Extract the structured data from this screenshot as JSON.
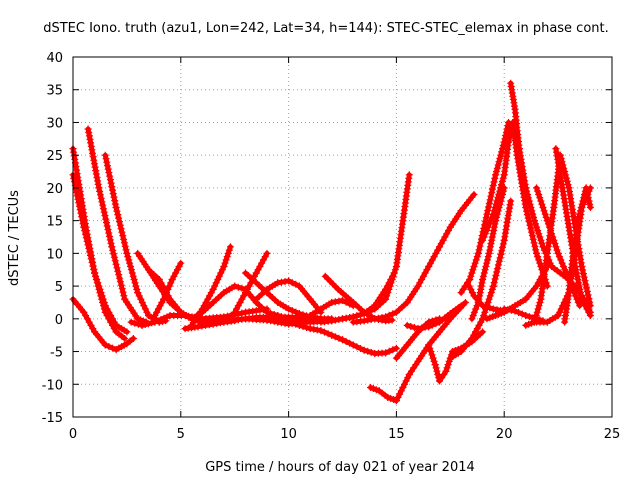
{
  "chart_data": {
    "type": "scatter",
    "title": "dSTEC Iono. truth (azu1, Lon=242, Lat=34, h=144): STEC-STEC_elemax in phase cont.",
    "xlabel": "GPS time / hours of day 021 of year 2014",
    "ylabel": "dSTEC  / TECUs",
    "xlim": [
      0,
      25
    ],
    "ylim": [
      -15,
      40
    ],
    "xticks": [
      0,
      5,
      10,
      15,
      20,
      25
    ],
    "yticks": [
      -15,
      -10,
      -5,
      0,
      5,
      10,
      15,
      20,
      25,
      30,
      35,
      40
    ],
    "grid": true,
    "marker": "+",
    "color": "#ff0000",
    "series": [
      {
        "x": [
          0.0,
          0.3,
          0.6,
          1.0,
          1.5,
          2.0,
          2.4
        ],
        "y": [
          26,
          20,
          14,
          7,
          1,
          -2,
          -3
        ]
      },
      {
        "x": [
          0.0,
          0.5,
          1.0,
          1.5,
          2.0,
          2.5
        ],
        "y": [
          22,
          14,
          7,
          2,
          -1,
          -2
        ]
      },
      {
        "x": [
          0.0,
          0.5,
          1.0,
          1.5,
          2.0,
          2.5,
          2.8
        ],
        "y": [
          3,
          1,
          -2,
          -4,
          -4.7,
          -3.8,
          -3
        ]
      },
      {
        "x": [
          0.7,
          1.2,
          1.8,
          2.4,
          3.0,
          3.4
        ],
        "y": [
          29,
          20,
          11,
          3,
          0,
          -0.5
        ]
      },
      {
        "x": [
          1.5,
          2.0,
          2.5,
          3.0,
          3.5,
          4.0,
          4.3
        ],
        "y": [
          25,
          17,
          10,
          4,
          0.5,
          -0.5,
          -0.3
        ]
      },
      {
        "x": [
          2.7,
          3.2,
          3.8,
          4.5,
          5.2,
          6.0,
          7.0,
          8.0,
          9.0
        ],
        "y": [
          -0.5,
          -1,
          -0.5,
          0.5,
          0.5,
          0,
          0.3,
          1,
          1.5
        ]
      },
      {
        "x": [
          3.0,
          3.5,
          4.0,
          4.5,
          5.0,
          5.5,
          6.0
        ],
        "y": [
          10,
          7.5,
          5,
          2.5,
          1,
          0,
          -0.5
        ]
      },
      {
        "x": [
          3.5,
          4.0,
          4.5,
          5.0,
          5.5,
          6.0,
          6.5,
          7.0,
          7.5
        ],
        "y": [
          7.5,
          6,
          3,
          1,
          0,
          -0.5,
          -0.5,
          -0.5,
          -0.3
        ]
      },
      {
        "x": [
          3.8,
          4.2,
          4.6,
          5.0
        ],
        "y": [
          0.5,
          3,
          6,
          8.5
        ]
      },
      {
        "x": [
          5.5,
          6.0,
          6.5,
          7.0,
          7.5,
          8.0,
          8.5,
          9.0,
          9.5,
          10.0
        ],
        "y": [
          0,
          1,
          2.5,
          4,
          5,
          4.5,
          2.5,
          1,
          0.5,
          0
        ]
      },
      {
        "x": [
          5.5,
          6.0,
          6.5,
          7.0,
          7.3
        ],
        "y": [
          -1,
          1.5,
          4.5,
          8,
          11
        ]
      },
      {
        "x": [
          5.2,
          5.8,
          6.5,
          7.5,
          8.5,
          9.5,
          10.5,
          11.5
        ],
        "y": [
          -1.5,
          -1.2,
          -0.8,
          -0.2,
          0.2,
          0.3,
          0.2,
          0.1
        ]
      },
      {
        "x": [
          6.0,
          7.0,
          8.0,
          9.0,
          10.0,
          11.0,
          12.0
        ],
        "y": [
          -0.5,
          -0.3,
          0,
          -0.2,
          -0.5,
          -0.5,
          -0.3
        ]
      },
      {
        "x": [
          7.5,
          8.0,
          8.5,
          9.0
        ],
        "y": [
          1,
          4,
          7,
          10
        ]
      },
      {
        "x": [
          8.0,
          8.5,
          9.0,
          9.5,
          10.0,
          10.5,
          11.0,
          11.5,
          12.0
        ],
        "y": [
          7,
          5.5,
          4,
          2.5,
          1.5,
          0.8,
          0.3,
          0,
          0
        ]
      },
      {
        "x": [
          8.5,
          9.0,
          9.5,
          10.0,
          10.5,
          11.0,
          11.5
        ],
        "y": [
          3,
          4.5,
          5.5,
          5.8,
          5,
          3,
          1
        ]
      },
      {
        "x": [
          9.0,
          9.5,
          10.0,
          10.5,
          11.0,
          11.5,
          12.0,
          12.5,
          13.0
        ],
        "y": [
          -0.2,
          -0.5,
          -0.8,
          -0.5,
          0.5,
          1.5,
          2.5,
          2.8,
          2
        ]
      },
      {
        "x": [
          10.0,
          10.5,
          11.0,
          11.5,
          12.0,
          12.5,
          13.0,
          13.5,
          14.0,
          14.5,
          15.0
        ],
        "y": [
          -0.5,
          -1,
          -1.5,
          -1.8,
          -2.5,
          -3.2,
          -4,
          -4.8,
          -5.3,
          -5.2,
          -4.5
        ]
      },
      {
        "x": [
          11.7,
          12.3,
          13.0,
          13.5,
          14.0,
          14.5,
          14.8
        ],
        "y": [
          6.5,
          4.5,
          2.5,
          1,
          0,
          -0.3,
          -0.2
        ]
      },
      {
        "x": [
          11.5,
          12.0,
          12.5,
          13.0,
          13.5,
          14.0,
          14.5,
          14.9
        ],
        "y": [
          -0.5,
          -0.3,
          0,
          0.3,
          0.8,
          2,
          4.5,
          7
        ]
      },
      {
        "x": [
          12.5,
          13.0,
          13.5,
          14.0,
          14.5,
          15.0,
          15.3,
          15.6
        ],
        "y": [
          0,
          0.3,
          0.8,
          1.5,
          3,
          8,
          15,
          22
        ]
      },
      {
        "x": [
          13.0,
          13.5,
          14.0,
          14.5,
          15.0,
          15.5,
          16.0,
          16.5,
          17.0,
          17.5,
          18.0,
          18.6
        ],
        "y": [
          -0.5,
          -0.3,
          0,
          0.3,
          1,
          2.5,
          5,
          8,
          11,
          14,
          16.5,
          19
        ]
      },
      {
        "x": [
          13.8,
          14.2,
          14.6,
          15.0,
          15.3,
          15.6,
          16.0,
          16.5,
          17.0,
          17.5,
          18.2
        ],
        "y": [
          -10.5,
          -11,
          -12,
          -12.5,
          -10.5,
          -8.5,
          -6.5,
          -4,
          -2,
          0,
          2.5
        ]
      },
      {
        "x": [
          15.5,
          16.0,
          16.5,
          17.0,
          17.5,
          18.0
        ],
        "y": [
          -1,
          -1.5,
          -1.2,
          -0.5,
          0.8,
          2
        ]
      },
      {
        "x": [
          15.0,
          15.5,
          16.0,
          16.5,
          17.0
        ],
        "y": [
          -6,
          -4,
          -2,
          -0.5,
          0
        ]
      },
      {
        "x": [
          16.5,
          16.8,
          17.0,
          17.3,
          17.6,
          18.0,
          18.5,
          19.0
        ],
        "y": [
          -4,
          -7,
          -9.5,
          -8,
          -5,
          -4.5,
          -3.5,
          -2
        ]
      },
      {
        "x": [
          17.5,
          18.0,
          18.5,
          19.0,
          19.5,
          20.0,
          20.3
        ],
        "y": [
          -6,
          -5,
          -3,
          0,
          5,
          12,
          18
        ]
      },
      {
        "x": [
          18.0,
          18.4,
          18.8,
          19.2,
          19.6,
          20.0,
          20.2
        ],
        "y": [
          4,
          6,
          10,
          16,
          22,
          27,
          30
        ]
      },
      {
        "x": [
          18.3,
          18.6,
          19.0,
          19.5,
          20.0
        ],
        "y": [
          5.5,
          3.5,
          2,
          1.5,
          1.2
        ]
      },
      {
        "x": [
          18.5,
          18.8,
          19.0,
          19.3,
          19.6,
          20.0
        ],
        "y": [
          0,
          2.5,
          6,
          10,
          15,
          20
        ]
      },
      {
        "x": [
          19.0,
          19.5,
          20.0,
          20.2,
          20.4,
          20.6,
          21.0,
          21.5,
          22.0
        ],
        "y": [
          12,
          16,
          22,
          27,
          30,
          25,
          17,
          10,
          5
        ]
      },
      {
        "x": [
          20.3,
          20.5,
          20.7,
          21.0,
          21.4,
          21.8,
          22.2,
          22.6,
          23.0,
          23.4,
          23.8,
          24.0
        ],
        "y": [
          36,
          32,
          26,
          20,
          15,
          11,
          8,
          7,
          6,
          4.5,
          2.5,
          1
        ]
      },
      {
        "x": [
          19.2,
          19.6,
          20.0,
          20.5,
          21.0,
          21.5,
          22.0
        ],
        "y": [
          0,
          0.5,
          1,
          2,
          3,
          5,
          8
        ]
      },
      {
        "x": [
          20.0,
          20.5,
          21.0,
          21.5,
          21.8
        ],
        "y": [
          1.5,
          1.2,
          0.5,
          0,
          -0.3
        ]
      },
      {
        "x": [
          21.0,
          21.4,
          21.7,
          22.0,
          22.3,
          22.6,
          23.0
        ],
        "y": [
          -1,
          -0.5,
          3,
          10,
          17,
          25,
          20
        ]
      },
      {
        "x": [
          22.4,
          22.7,
          23.0,
          23.3,
          23.6,
          24.0
        ],
        "y": [
          26,
          20,
          14,
          8,
          3,
          0.5
        ]
      },
      {
        "x": [
          21.5,
          22.0,
          22.5,
          23.0,
          23.3,
          23.6,
          24.0
        ],
        "y": [
          -0.5,
          -0.5,
          0.5,
          4,
          10,
          17,
          20
        ]
      },
      {
        "x": [
          22.8,
          23.0,
          23.2,
          23.5,
          23.8,
          24.0
        ],
        "y": [
          -0.5,
          4,
          10,
          16,
          20,
          17
        ]
      },
      {
        "x": [
          23.0,
          23.3,
          23.6,
          24.0
        ],
        "y": [
          20,
          14,
          8,
          2
        ]
      },
      {
        "x": [
          21.5,
          22.0,
          22.5,
          23.0,
          23.5
        ],
        "y": [
          20,
          15,
          10,
          6,
          2
        ]
      }
    ]
  }
}
